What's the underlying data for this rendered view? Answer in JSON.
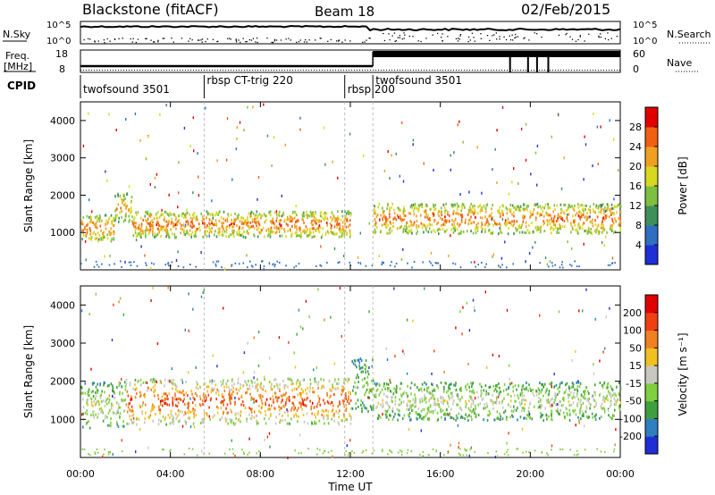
{
  "header": {
    "station": "Blackstone (fitACF)",
    "beam": "Beam 18",
    "date": "02/Feb/2015"
  },
  "panels_top": {
    "nsky_label": "N.Sky",
    "nsky_ticks": [
      "10^5",
      "10^0"
    ],
    "nsky_right_ticks": [
      "10^5",
      "10^0"
    ],
    "nsearch_label": "N.Search",
    "freq_label_line1": "Freq.",
    "freq_label_line2": "[MHz]",
    "freq_ticks": [
      "18",
      "8"
    ],
    "nave_ticks": [
      "60",
      "0"
    ],
    "nave_label": "Nave",
    "cpid_label": "CPID"
  },
  "cpid_segments": [
    {
      "name": "twofsound 3501",
      "start": 0.0,
      "end": 5.5
    },
    {
      "name": "rbsp CT-trig 220",
      "start": 5.5,
      "end": 11.75
    },
    {
      "name": "rbsp 200",
      "start": 11.75,
      "end": 13.0
    },
    {
      "name": "twofsound 3501",
      "start": 13.0,
      "end": 24.0
    }
  ],
  "chart_data": [
    {
      "type": "heatmap",
      "title": "",
      "xlabel": "Time UT",
      "ylabel": "Slant Range [km]",
      "xlim": [
        0,
        24
      ],
      "ylim": [
        0,
        4500
      ],
      "x_ticks": [
        "00:00",
        "04:00",
        "08:00",
        "12:00",
        "16:00",
        "20:00",
        "00:00"
      ],
      "y_ticks": [
        1000,
        2000,
        3000,
        4000
      ],
      "colorbar": {
        "label": "Power [dB]",
        "ticks": [
          "28",
          "24",
          "20",
          "16",
          "12",
          "8",
          "4"
        ],
        "colors": [
          "#1f2fd6",
          "#2f6ec0",
          "#3f8f5a",
          "#7fbf3f",
          "#d8d820",
          "#f0a020",
          "#f06010",
          "#e00000"
        ]
      },
      "bands": [
        {
          "t0": 0.0,
          "t1": 1.5,
          "r0": 800,
          "r1": 1500,
          "level": 6
        },
        {
          "t0": 1.5,
          "t1": 2.3,
          "r0": 1300,
          "r1": 2100,
          "level": 5
        },
        {
          "t0": 2.3,
          "t1": 12.0,
          "r0": 900,
          "r1": 1600,
          "level": 6
        },
        {
          "t0": 13.0,
          "t1": 24.0,
          "r0": 1000,
          "r1": 1800,
          "level": 6
        }
      ]
    },
    {
      "type": "heatmap",
      "title": "",
      "xlabel": "Time UT",
      "ylabel": "Slant Range [km]",
      "xlim": [
        0,
        24
      ],
      "ylim": [
        0,
        4500
      ],
      "x_ticks": [
        "00:00",
        "04:00",
        "08:00",
        "12:00",
        "16:00",
        "20:00",
        "00:00"
      ],
      "y_ticks": [
        1000,
        2000,
        3000,
        4000
      ],
      "colorbar": {
        "label": "Velocity [m s⁻¹]",
        "ticks": [
          "200",
          "100",
          "50",
          "15",
          "-15",
          "-50",
          "-100",
          "-200"
        ],
        "colors": [
          "#1f2fd6",
          "#2f7fbf",
          "#3f9f3f",
          "#7fcf3f",
          "#c8c8c0",
          "#f0c020",
          "#f08020",
          "#f04010",
          "#e00000"
        ]
      },
      "bands": [
        {
          "t0": 0.0,
          "t1": 2.0,
          "r0": 800,
          "r1": 2000,
          "level": 4
        },
        {
          "t0": 2.0,
          "t1": 12.0,
          "r0": 900,
          "r1": 2100,
          "level": 7
        },
        {
          "t0": 12.0,
          "t1": 13.0,
          "r0": 1200,
          "r1": 2600,
          "level": 3
        },
        {
          "t0": 13.0,
          "t1": 24.0,
          "r0": 1000,
          "r1": 2000,
          "level": 4
        }
      ]
    }
  ]
}
